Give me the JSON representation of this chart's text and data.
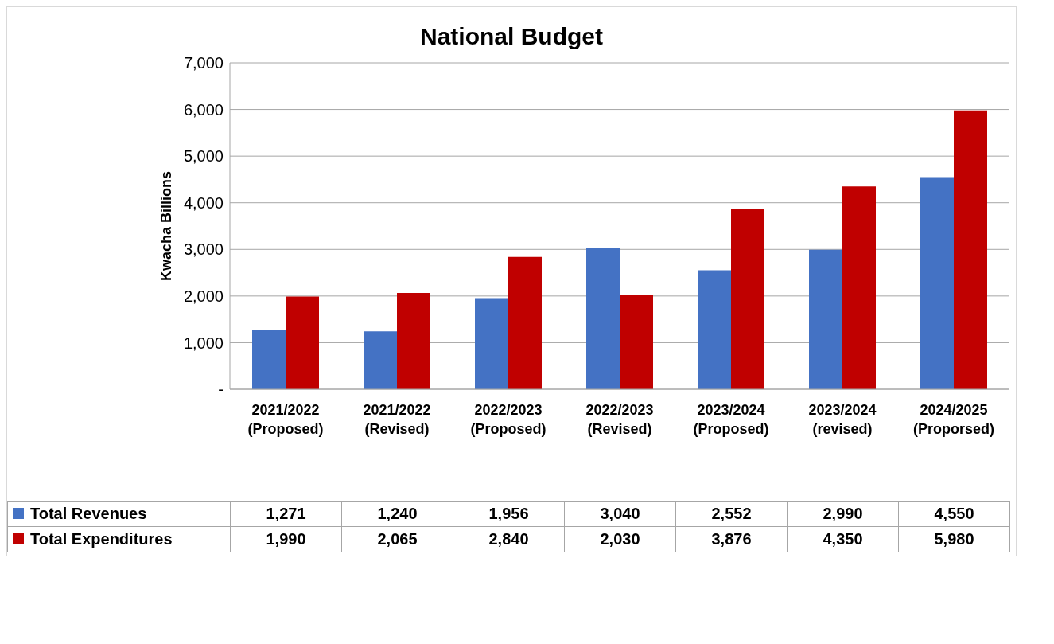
{
  "chart_data": {
    "type": "bar",
    "title": "National Budget",
    "ylabel": "Kwacha Billions",
    "categories": [
      "2021/2022 (Proposed)",
      "2021/2022 (Revised)",
      "2022/2023 (Proposed)",
      "2022/2023 (Revised)",
      "2023/2024 (Proposed)",
      "2023/2024 (revised)",
      "2024/2025 (Proporsed)"
    ],
    "series": [
      {
        "name": "Total Revenues",
        "color": "#4472c4",
        "values": [
          1271,
          1240,
          1956,
          3040,
          2552,
          2990,
          4550
        ],
        "value_labels": [
          "1,271",
          "1,240",
          "1,956",
          "3,040",
          "2,552",
          "2,990",
          "4,550"
        ]
      },
      {
        "name": "Total Expenditures",
        "color": "#c00000",
        "values": [
          1990,
          2065,
          2840,
          2030,
          3876,
          4350,
          5980
        ],
        "value_labels": [
          "1,990",
          "2,065",
          "2,840",
          "2,030",
          "3,876",
          "4,350",
          "5,980"
        ]
      }
    ],
    "ylim": [
      0,
      7000
    ],
    "yticks": [
      {
        "value": 0,
        "label": "-"
      },
      {
        "value": 1000,
        "label": "1,000"
      },
      {
        "value": 2000,
        "label": "2,000"
      },
      {
        "value": 3000,
        "label": "3,000"
      },
      {
        "value": 4000,
        "label": "4,000"
      },
      {
        "value": 5000,
        "label": "5,000"
      },
      {
        "value": 6000,
        "label": "6,000"
      },
      {
        "value": 7000,
        "label": "7,000"
      }
    ],
    "grid": "y",
    "legend": "bottom"
  }
}
